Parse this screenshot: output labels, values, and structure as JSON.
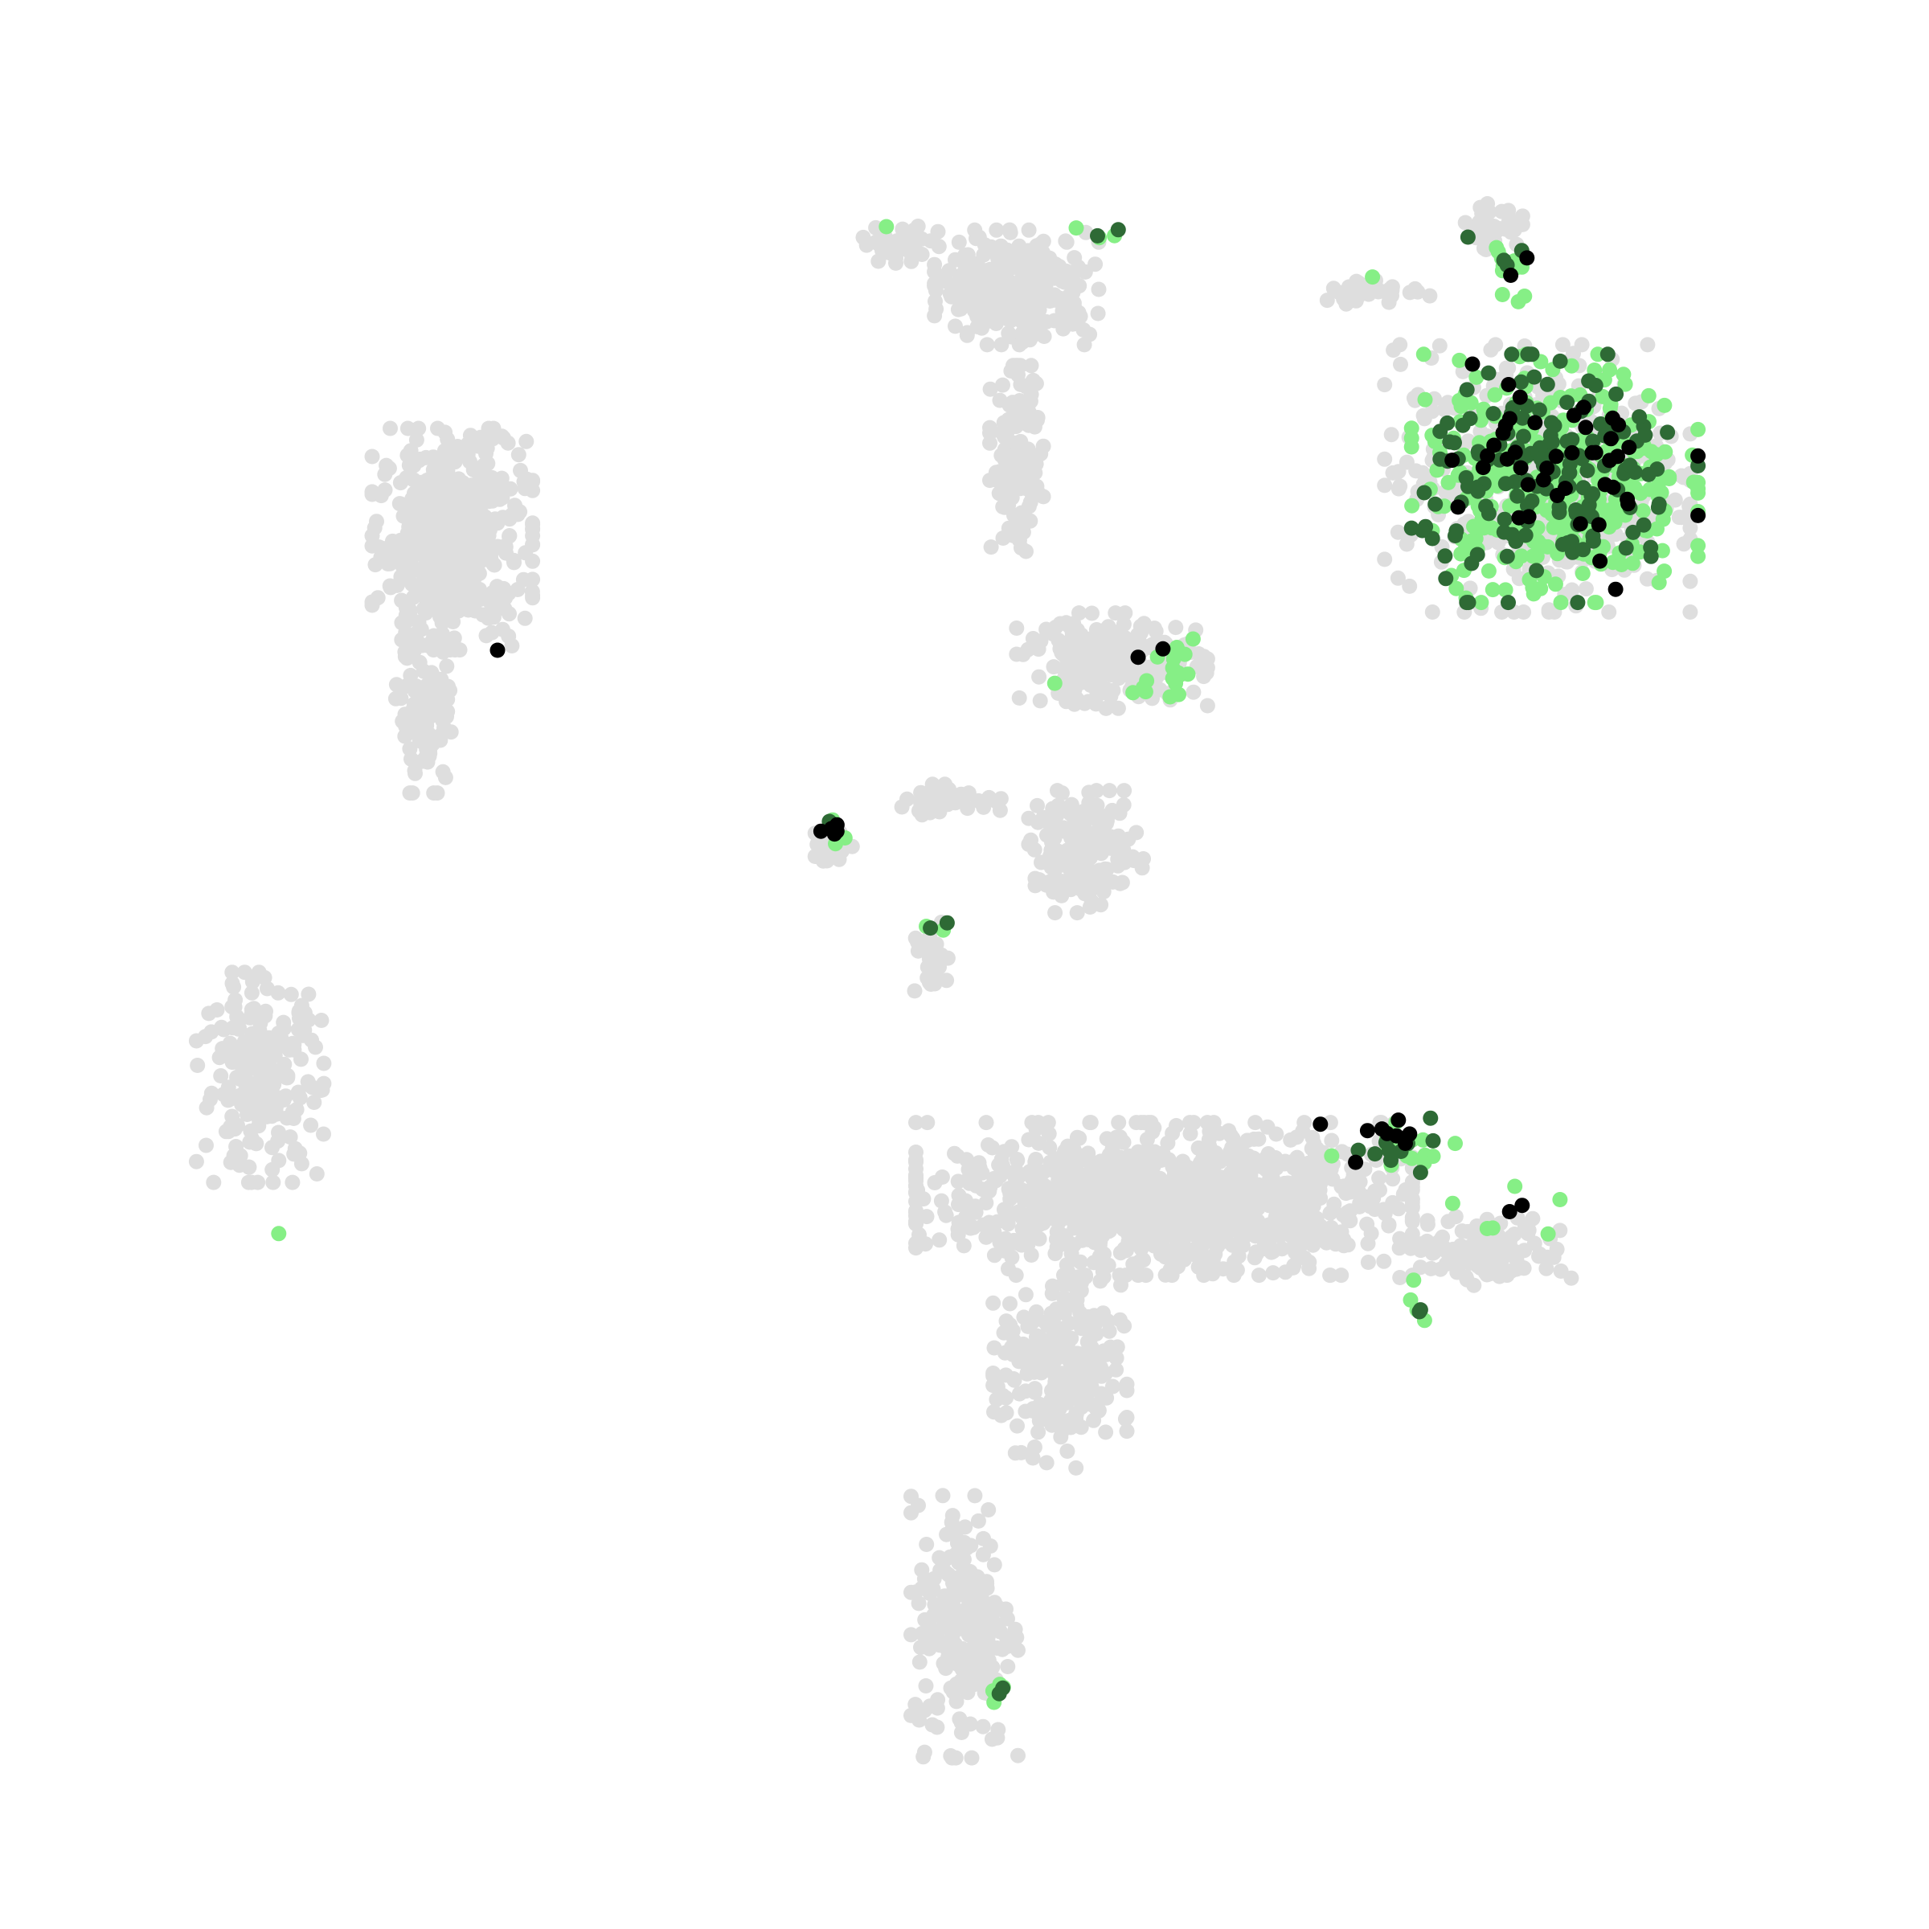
{
  "chart_data": {
    "type": "scatter",
    "title": "",
    "xlabel": "",
    "ylabel": "",
    "axes_visible": false,
    "grid": false,
    "legend": "none",
    "xlim": [
      0,
      100
    ],
    "ylim": [
      0,
      100
    ],
    "colors": {
      "background_cells": "#dedede",
      "low": "#86ef86",
      "mid": "#2e6a35",
      "high": "#000000"
    },
    "background_clusters": [
      {
        "name": "",
        "cx": 20.5,
        "cy": 74.5,
        "rx": 4.2,
        "ry": 5.8,
        "n": 520
      },
      {
        "name": "",
        "cx": 19.0,
        "cy": 64.5,
        "rx": 1.6,
        "ry": 4.2,
        "n": 110
      },
      {
        "name": "",
        "cx": 9.5,
        "cy": 43.5,
        "rx": 3.4,
        "ry": 5.5,
        "n": 230
      },
      {
        "name": "",
        "cx": 53.0,
        "cy": 89.0,
        "rx": 4.3,
        "ry": 3.0,
        "n": 300
      },
      {
        "name": "",
        "cx": 46.0,
        "cy": 91.5,
        "rx": 2.0,
        "ry": 1.0,
        "n": 35
      },
      {
        "name": "",
        "cx": 53.0,
        "cy": 79.0,
        "rx": 1.4,
        "ry": 5.0,
        "n": 130
      },
      {
        "name": "",
        "cx": 58.5,
        "cy": 67.5,
        "rx": 5.0,
        "ry": 2.5,
        "n": 240
      },
      {
        "name": "",
        "cx": 57.0,
        "cy": 56.5,
        "rx": 3.0,
        "ry": 3.2,
        "n": 170
      },
      {
        "name": "",
        "cx": 49.0,
        "cy": 59.5,
        "rx": 3.5,
        "ry": 0.8,
        "n": 45
      },
      {
        "name": "",
        "cx": 42.5,
        "cy": 56.8,
        "rx": 1.0,
        "ry": 1.2,
        "n": 25
      },
      {
        "name": "",
        "cx": 48.0,
        "cy": 50.5,
        "rx": 1.0,
        "ry": 2.2,
        "n": 30
      },
      {
        "name": "",
        "cx": 61.5,
        "cy": 36.5,
        "rx": 13.0,
        "ry": 4.0,
        "n": 1100
      },
      {
        "name": "",
        "cx": 80.0,
        "cy": 33.5,
        "rx": 4.5,
        "ry": 1.8,
        "n": 130
      },
      {
        "name": "",
        "cx": 55.5,
        "cy": 26.5,
        "rx": 3.5,
        "ry": 5.0,
        "n": 260
      },
      {
        "name": "",
        "cx": 50.0,
        "cy": 12.0,
        "rx": 2.8,
        "ry": 7.0,
        "n": 230
      },
      {
        "name": "",
        "cx": 73.5,
        "cy": 88.8,
        "rx": 3.0,
        "ry": 0.7,
        "n": 40
      },
      {
        "name": "",
        "cx": 80.5,
        "cy": 92.5,
        "rx": 1.5,
        "ry": 1.2,
        "n": 40
      },
      {
        "name": "",
        "cx": 83.0,
        "cy": 78.0,
        "rx": 8.0,
        "ry": 7.0,
        "n": 500
      }
    ],
    "expressing_groups": [
      {
        "name": "",
        "cx": 84.0,
        "cy": 78.0,
        "rx": 7.5,
        "ry": 6.5,
        "n_low": 330,
        "n_mid": 160,
        "n_high": 45
      },
      {
        "name": "",
        "cx": 81.5,
        "cy": 90.0,
        "rx": 1.0,
        "ry": 2.0,
        "n_low": 12,
        "n_mid": 3,
        "n_high": 1
      },
      {
        "name": "",
        "cx": 61.5,
        "cy": 67.0,
        "rx": 2.5,
        "ry": 1.8,
        "n_low": 18,
        "n_mid": 0,
        "n_high": 1
      },
      {
        "name": "",
        "cx": 57.5,
        "cy": 92.0,
        "rx": 2.0,
        "ry": 0.4,
        "n_low": 3,
        "n_mid": 2,
        "n_high": 0
      },
      {
        "name": "",
        "cx": 42.5,
        "cy": 57.8,
        "rx": 0.7,
        "ry": 0.8,
        "n_low": 3,
        "n_mid": 2,
        "n_high": 5
      },
      {
        "name": "",
        "cx": 48.5,
        "cy": 52.2,
        "rx": 0.8,
        "ry": 0.3,
        "n_low": 1,
        "n_mid": 1,
        "n_high": 0
      },
      {
        "name": "",
        "cx": 75.0,
        "cy": 40.0,
        "rx": 3.5,
        "ry": 1.8,
        "n_low": 18,
        "n_mid": 10,
        "n_high": 8
      },
      {
        "name": "",
        "cx": 81.0,
        "cy": 36.0,
        "rx": 3.0,
        "ry": 1.5,
        "n_low": 6,
        "n_mid": 0,
        "n_high": 2
      },
      {
        "name": "",
        "cx": 76.0,
        "cy": 30.5,
        "rx": 0.5,
        "ry": 1.2,
        "n_low": 3,
        "n_mid": 1,
        "n_high": 0
      },
      {
        "name": "",
        "cx": 51.8,
        "cy": 8.5,
        "rx": 0.4,
        "ry": 0.6,
        "n_low": 3,
        "n_mid": 1,
        "n_high": 0
      }
    ],
    "points": [
      {
        "x": 23.1,
        "y": 68.1,
        "level": "high"
      },
      {
        "x": 60.0,
        "y": 67.7,
        "level": "high"
      },
      {
        "x": 45.5,
        "y": 92.5,
        "level": "low"
      },
      {
        "x": 10.5,
        "y": 34.5,
        "level": "low"
      },
      {
        "x": 47.8,
        "y": 52.2,
        "level": "low"
      },
      {
        "x": 49.0,
        "y": 52.4,
        "level": "mid"
      },
      {
        "x": 55.2,
        "y": 66.2,
        "level": "low"
      },
      {
        "x": 79.0,
        "y": 91.9,
        "level": "mid"
      },
      {
        "x": 82.4,
        "y": 90.7,
        "level": "high"
      },
      {
        "x": 73.5,
        "y": 89.6,
        "level": "low"
      },
      {
        "x": 70.5,
        "y": 40.8,
        "level": "high"
      },
      {
        "x": 76.2,
        "y": 30.0,
        "level": "mid"
      },
      {
        "x": 76.5,
        "y": 29.5,
        "level": "low"
      },
      {
        "x": 52.0,
        "y": 8.0,
        "level": "mid"
      },
      {
        "x": 51.7,
        "y": 7.5,
        "level": "low"
      }
    ]
  }
}
